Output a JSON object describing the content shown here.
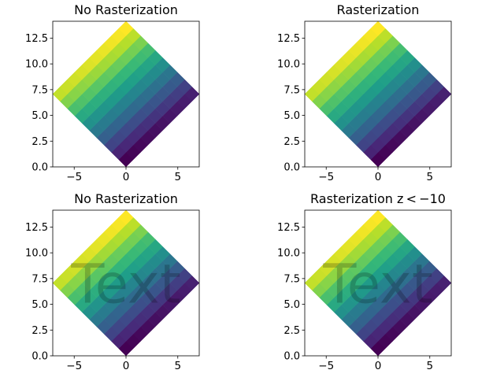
{
  "chart_data": [
    {
      "type": "heatmap",
      "title": "No Rasterization",
      "xlim": [
        -7.07,
        7.07
      ],
      "ylim": [
        0,
        14.14
      ],
      "xticks": [
        -5,
        0,
        5
      ],
      "xtick_labels": [
        "−5",
        "0",
        "5"
      ],
      "yticks": [
        0,
        2.5,
        5,
        7.5,
        10,
        12.5
      ],
      "ytick_labels": [
        "0.0",
        "2.5",
        "5.0",
        "7.5",
        "10.0",
        "12.5"
      ],
      "grid": false,
      "colormap": "viridis",
      "values": "d = arange(100).reshape(10,10) on mesh rotated 45°",
      "rotation_deg": 45,
      "rasterized": false,
      "overlay_text": ""
    },
    {
      "type": "heatmap",
      "title": "Rasterization",
      "xlim": [
        -7.07,
        7.07
      ],
      "ylim": [
        0,
        14.14
      ],
      "xticks": [
        -5,
        0,
        5
      ],
      "xtick_labels": [
        "−5",
        "0",
        "5"
      ],
      "yticks": [
        0,
        2.5,
        5,
        7.5,
        10,
        12.5
      ],
      "ytick_labels": [
        "0.0",
        "2.5",
        "5.0",
        "7.5",
        "10.0",
        "12.5"
      ],
      "grid": false,
      "colormap": "viridis",
      "rotation_deg": 45,
      "rasterized": true,
      "overlay_text": ""
    },
    {
      "type": "heatmap",
      "title": "No Rasterization",
      "xlim": [
        -7.07,
        7.07
      ],
      "ylim": [
        0,
        14.14
      ],
      "xticks": [
        -5,
        0,
        5
      ],
      "xtick_labels": [
        "−5",
        "0",
        "5"
      ],
      "yticks": [
        0,
        2.5,
        5,
        7.5,
        10,
        12.5
      ],
      "ytick_labels": [
        "0.0",
        "2.5",
        "5.0",
        "7.5",
        "10.0",
        "12.5"
      ],
      "grid": false,
      "colormap": "viridis",
      "rotation_deg": 45,
      "rasterized": false,
      "overlay_text": "Text"
    },
    {
      "type": "heatmap",
      "title": "Rasterization z < −10",
      "xlim": [
        -7.07,
        7.07
      ],
      "ylim": [
        0,
        14.14
      ],
      "xticks": [
        -5,
        0,
        5
      ],
      "xtick_labels": [
        "−5",
        "0",
        "5"
      ],
      "yticks": [
        0,
        2.5,
        5,
        7.5,
        10,
        12.5
      ],
      "ytick_labels": [
        "0.0",
        "2.5",
        "5.0",
        "7.5",
        "10.0",
        "12.5"
      ],
      "grid": false,
      "colormap": "viridis",
      "rotation_deg": 45,
      "rasterized": true,
      "overlay_text": "Text"
    }
  ]
}
